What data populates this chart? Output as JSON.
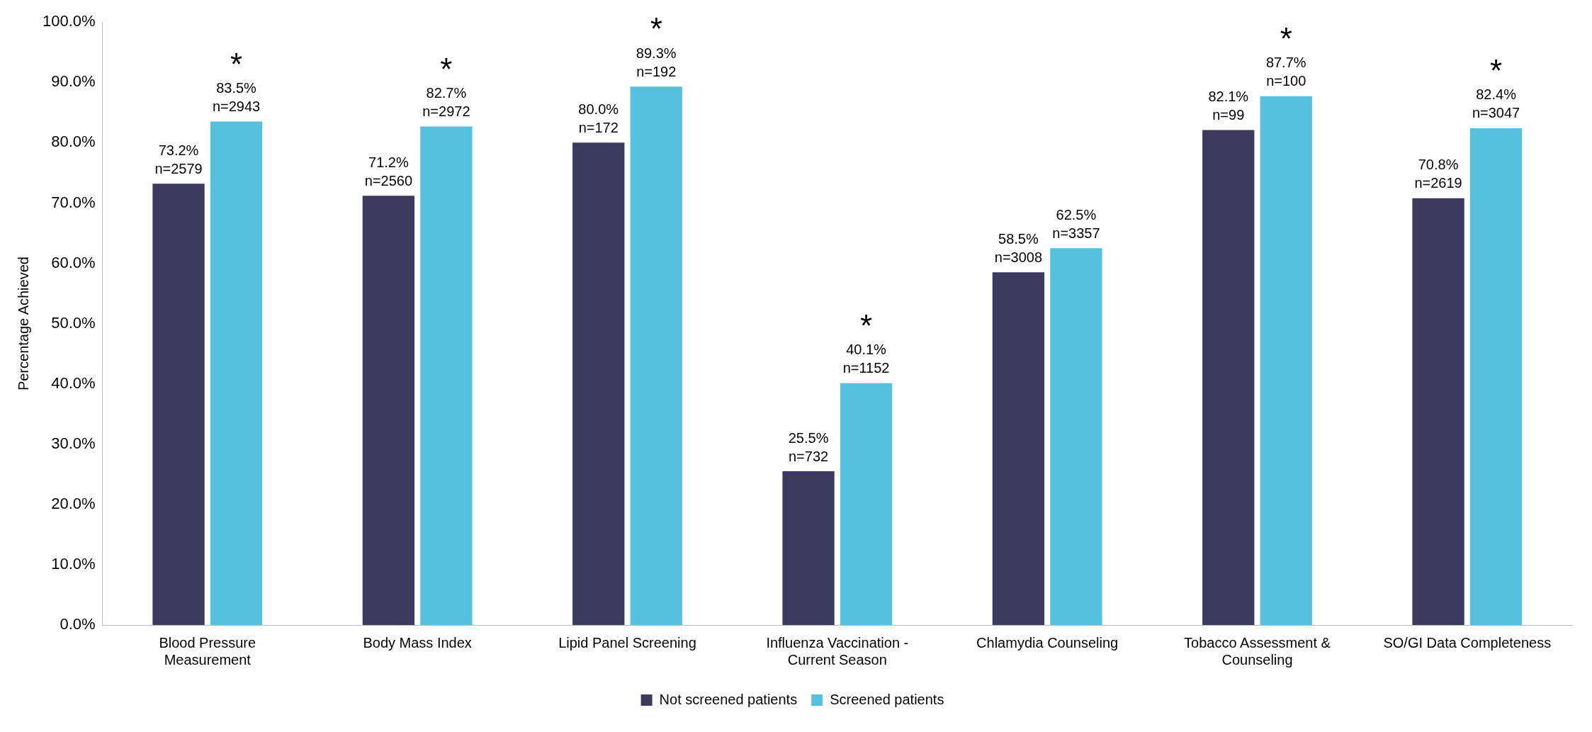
{
  "chart_data": {
    "type": "bar",
    "ylabel": "Percentage Achieved",
    "categories": [
      "Blood Pressure Measurement",
      "Body Mass Index",
      "Lipid Panel Screening",
      "Influenza Vaccination - Current Season",
      "Chlamydia Counseling",
      "Tobacco Assessment & Counseling",
      "SO/GI Data Completeness"
    ],
    "series": [
      {
        "name": "Not screened patients",
        "color": "#3c3a5e",
        "values": [
          73.2,
          71.2,
          80.0,
          25.5,
          58.5,
          82.1,
          70.8
        ],
        "value_labels": [
          "73.2%\nn=2579",
          "71.2%\nn=2560",
          "80.0%\nn=172",
          "25.5%\nn=732",
          "58.5%\nn=3008",
          "82.1%\nn=99",
          "70.8%\nn=2619"
        ]
      },
      {
        "name": "Screened patients",
        "color": "#56c1de",
        "values": [
          83.5,
          82.7,
          89.3,
          40.1,
          62.5,
          87.7,
          82.4
        ],
        "value_labels": [
          "83.5%\nn=2943",
          "82.7%\nn=2972",
          "89.3%\nn=192",
          "40.1%\nn=1152",
          "62.5%\nn=3357",
          "87.7%\nn=100",
          "82.4%\nn=3047"
        ]
      }
    ],
    "ylim": [
      0,
      100
    ],
    "yticks": [
      {
        "value": 0,
        "label": "0.0%"
      },
      {
        "value": 10,
        "label": "10.0%"
      },
      {
        "value": 20,
        "label": "20.0%"
      },
      {
        "value": 30,
        "label": "30.0%"
      },
      {
        "value": 40,
        "label": "40.0%"
      },
      {
        "value": 50,
        "label": "50.0%"
      },
      {
        "value": 60,
        "label": "60.0%"
      },
      {
        "value": 70,
        "label": "70.0%"
      },
      {
        "value": 80,
        "label": "80.0%"
      },
      {
        "value": 90,
        "label": "90.0%"
      },
      {
        "value": 100,
        "label": "100.0%"
      }
    ],
    "grid": false,
    "legend": "bottom",
    "annotations": [
      {
        "text": "*",
        "x": "Blood Pressure Measurement",
        "y": 83.5
      },
      {
        "text": "*",
        "x": "Body Mass Index",
        "y": 82.7
      },
      {
        "text": "*",
        "x": "Lipid Panel Screening",
        "y": 89.3
      },
      {
        "text": "*",
        "x": "Influenza Vaccination - Current Season",
        "y": 40.1
      },
      {
        "text": "*",
        "x": "Tobacco Assessment & Counseling",
        "y": 87.7
      },
      {
        "text": "*",
        "x": "SO/GI Data Completeness",
        "y": 82.4
      }
    ]
  }
}
